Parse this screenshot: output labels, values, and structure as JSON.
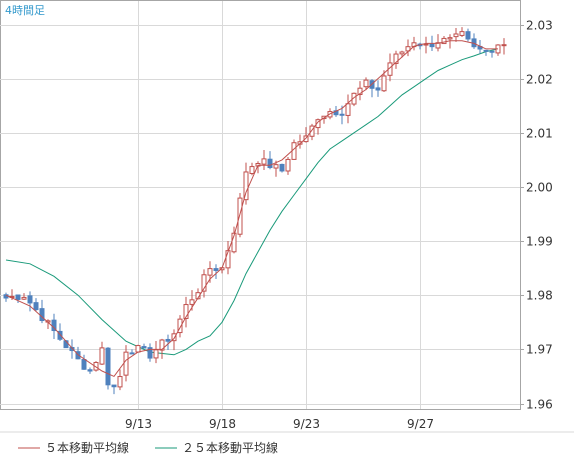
{
  "chart_title": "4時間足",
  "legend": [
    {
      "label": "５本移動平均線",
      "color": "#c0504d"
    },
    {
      "label": "２５本移動平均線",
      "color": "#1a9a7a"
    }
  ],
  "colors": {
    "up_body": "#ffffff",
    "up_border": "#c0504d",
    "down_body": "#4f81bd",
    "down_border": "#4f81bd",
    "grid": "#d9d9d9",
    "frame": "#a6a6a6"
  },
  "chart_data": {
    "type": "candlestick",
    "ylim": [
      1.958,
      2.032
    ],
    "y_ticks": [
      1.96,
      1.97,
      1.98,
      1.99,
      2.0,
      2.01,
      2.02,
      2.03
    ],
    "y_tick_labels": [
      "1.96",
      "1.97",
      "1.98",
      "1.99",
      "2.00",
      "2.01",
      "2.02",
      "2.03"
    ],
    "x_tick_labels": [
      {
        "index": 22,
        "label": "9/13"
      },
      {
        "index": 36,
        "label": "9/18"
      },
      {
        "index": 50,
        "label": "9/23"
      },
      {
        "index": 69,
        "label": "9/27"
      }
    ],
    "close_anchors": [
      [
        0,
        1.9795
      ],
      [
        3,
        1.98
      ],
      [
        6,
        1.976
      ],
      [
        9,
        1.972
      ],
      [
        12,
        1.968
      ],
      [
        14,
        1.966
      ],
      [
        16,
        1.97
      ],
      [
        17,
        1.964
      ],
      [
        18,
        1.963
      ],
      [
        19,
        1.965
      ],
      [
        20,
        1.97
      ],
      [
        22,
        1.97
      ],
      [
        24,
        1.969
      ],
      [
        26,
        1.971
      ],
      [
        28,
        1.973
      ],
      [
        30,
        1.978
      ],
      [
        32,
        1.981
      ],
      [
        34,
        1.985
      ],
      [
        36,
        1.985
      ],
      [
        38,
        1.992
      ],
      [
        40,
        2.003
      ],
      [
        42,
        2.005
      ],
      [
        44,
        2.004
      ],
      [
        46,
        2.003
      ],
      [
        48,
        2.008
      ],
      [
        50,
        2.009
      ],
      [
        52,
        2.013
      ],
      [
        54,
        2.014
      ],
      [
        56,
        2.014
      ],
      [
        58,
        2.017
      ],
      [
        60,
        2.019
      ],
      [
        62,
        2.018
      ],
      [
        64,
        2.023
      ],
      [
        66,
        2.025
      ],
      [
        68,
        2.027
      ],
      [
        70,
        2.026
      ],
      [
        72,
        2.027
      ],
      [
        74,
        2.027
      ],
      [
        76,
        2.028
      ],
      [
        78,
        2.0255
      ],
      [
        80,
        2.025
      ],
      [
        82,
        2.0265
      ]
    ],
    "ma5_points": [
      [
        0,
        1.98
      ],
      [
        4,
        1.978
      ],
      [
        8,
        1.974
      ],
      [
        12,
        1.969
      ],
      [
        16,
        1.966
      ],
      [
        18,
        1.965
      ],
      [
        20,
        1.968
      ],
      [
        22,
        1.9695
      ],
      [
        24,
        1.97
      ],
      [
        26,
        1.97
      ],
      [
        28,
        1.972
      ],
      [
        30,
        1.976
      ],
      [
        32,
        1.9795
      ],
      [
        34,
        1.983
      ],
      [
        36,
        1.985
      ],
      [
        38,
        1.991
      ],
      [
        40,
        1.999
      ],
      [
        42,
        2.004
      ],
      [
        44,
        2.004
      ],
      [
        46,
        2.005
      ],
      [
        48,
        2.007
      ],
      [
        50,
        2.009
      ],
      [
        52,
        2.012
      ],
      [
        54,
        2.0135
      ],
      [
        56,
        2.0145
      ],
      [
        58,
        2.0165
      ],
      [
        60,
        2.018
      ],
      [
        62,
        2.02
      ],
      [
        64,
        2.022
      ],
      [
        66,
        2.024
      ],
      [
        68,
        2.026
      ],
      [
        70,
        2.0265
      ],
      [
        72,
        2.0265
      ],
      [
        74,
        2.027
      ],
      [
        76,
        2.027
      ],
      [
        78,
        2.0265
      ],
      [
        80,
        2.0255
      ],
      [
        82,
        2.0255
      ]
    ],
    "ma25_points": [
      [
        0,
        1.9865
      ],
      [
        4,
        1.9858
      ],
      [
        8,
        1.9835
      ],
      [
        12,
        1.98
      ],
      [
        16,
        1.9755
      ],
      [
        20,
        1.9715
      ],
      [
        24,
        1.9695
      ],
      [
        28,
        1.969
      ],
      [
        30,
        1.97
      ],
      [
        32,
        1.9715
      ],
      [
        34,
        1.9725
      ],
      [
        36,
        1.975
      ],
      [
        38,
        1.979
      ],
      [
        40,
        1.984
      ],
      [
        42,
        1.988
      ],
      [
        44,
        1.992
      ],
      [
        46,
        1.9955
      ],
      [
        48,
        1.9985
      ],
      [
        50,
        2.0015
      ],
      [
        52,
        2.0045
      ],
      [
        54,
        2.007
      ],
      [
        56,
        2.0085
      ],
      [
        58,
        2.01
      ],
      [
        60,
        2.0115
      ],
      [
        62,
        2.013
      ],
      [
        64,
        2.015
      ],
      [
        66,
        2.017
      ],
      [
        68,
        2.0185
      ],
      [
        70,
        2.02
      ],
      [
        72,
        2.0215
      ],
      [
        74,
        2.0225
      ],
      [
        76,
        2.0235
      ],
      [
        78,
        2.0242
      ],
      [
        80,
        2.025
      ],
      [
        82,
        2.0255
      ]
    ],
    "n_candles": 84
  }
}
